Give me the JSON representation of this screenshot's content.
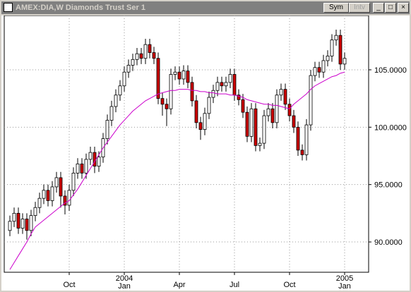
{
  "window": {
    "title": "AMEX:DIA,W Diamonds Trust Ser 1",
    "buttons": [
      "Sym",
      "Intv"
    ]
  },
  "chart_data": {
    "type": "candlestick",
    "categories": [
      null,
      null,
      null,
      null,
      null,
      null,
      null,
      null,
      null,
      null,
      null,
      null,
      null,
      null,
      "Oct",
      null,
      null,
      null,
      null,
      null,
      null,
      null,
      null,
      null,
      null,
      null,
      null,
      [
        "2004",
        "Jan"
      ],
      null,
      null,
      null,
      null,
      null,
      null,
      null,
      null,
      null,
      null,
      null,
      null,
      "Apr",
      null,
      null,
      null,
      null,
      null,
      null,
      null,
      null,
      null,
      null,
      null,
      null,
      "Jul",
      null,
      null,
      null,
      null,
      null,
      null,
      null,
      null,
      null,
      null,
      null,
      null,
      "Oct",
      null,
      null,
      null,
      null,
      null,
      null,
      null,
      null,
      null,
      null,
      null,
      null,
      [
        "2005",
        "Jan"
      ]
    ],
    "open": [
      91.0,
      91.8,
      92.5,
      91.2,
      92.0,
      91.0,
      92.3,
      93.0,
      93.8,
      94.5,
      93.6,
      94.8,
      95.6,
      94.0,
      93.2,
      94.5,
      96.0,
      96.8,
      96.0,
      97.2,
      97.8,
      96.6,
      97.4,
      99.0,
      100.6,
      101.8,
      102.8,
      103.6,
      104.8,
      105.4,
      105.9,
      106.4,
      106.0,
      107.2,
      106.5,
      106.0,
      102.5,
      102.0,
      101.6,
      104.6,
      104.8,
      104.2,
      104.9,
      103.9,
      102.3,
      100.4,
      99.8,
      101.2,
      102.6,
      103.2,
      103.9,
      103.6,
      103.9,
      104.6,
      102.8,
      102.4,
      101.3,
      99.2,
      101.6,
      98.4,
      98.6,
      101.0,
      101.6,
      100.4,
      102.8,
      103.3,
      102.0,
      101.0,
      100.0,
      98.0,
      97.6,
      100.2,
      104.5,
      105.2,
      104.8,
      105.8,
      106.2,
      107.6,
      108.0,
      105.5
    ],
    "high": [
      92.3,
      93.0,
      93.0,
      92.5,
      92.5,
      92.8,
      93.5,
      94.3,
      95.0,
      95.0,
      95.3,
      96.1,
      96.1,
      94.5,
      95.0,
      96.5,
      97.3,
      97.3,
      97.7,
      98.3,
      98.3,
      97.9,
      99.5,
      101.1,
      102.3,
      103.3,
      104.1,
      105.3,
      105.9,
      106.4,
      106.9,
      106.9,
      107.7,
      107.7,
      107.0,
      106.5,
      103.0,
      102.5,
      105.1,
      105.3,
      105.3,
      105.4,
      105.4,
      104.4,
      102.8,
      100.9,
      101.7,
      103.1,
      103.7,
      104.4,
      104.4,
      104.4,
      105.1,
      105.1,
      103.3,
      102.9,
      101.8,
      102.1,
      102.1,
      99.1,
      101.5,
      102.1,
      102.1,
      103.3,
      103.8,
      103.8,
      102.5,
      101.5,
      100.5,
      98.5,
      100.7,
      105.0,
      105.7,
      105.7,
      106.3,
      106.7,
      108.1,
      108.5,
      108.5,
      106.5
    ],
    "low": [
      90.5,
      91.3,
      90.7,
      90.7,
      90.2,
      90.5,
      91.8,
      92.5,
      93.3,
      93.1,
      93.1,
      94.3,
      93.0,
      92.4,
      92.7,
      94.0,
      95.5,
      95.5,
      95.5,
      96.7,
      96.0,
      96.1,
      96.9,
      98.5,
      100.1,
      101.3,
      102.3,
      103.1,
      104.3,
      104.9,
      105.4,
      105.5,
      105.5,
      106.0,
      105.5,
      102.0,
      101.0,
      100.1,
      101.1,
      104.1,
      103.7,
      103.7,
      103.4,
      101.8,
      99.9,
      98.9,
      99.3,
      100.7,
      102.1,
      102.7,
      103.1,
      103.1,
      103.4,
      102.3,
      101.9,
      100.8,
      98.7,
      98.7,
      97.9,
      97.9,
      98.1,
      100.5,
      99.9,
      99.9,
      102.3,
      101.5,
      100.5,
      99.5,
      97.5,
      97.1,
      97.1,
      99.7,
      104.0,
      104.3,
      104.3,
      105.3,
      105.7,
      107.1,
      105.0,
      105.0
    ],
    "close": [
      91.8,
      92.5,
      91.2,
      92.0,
      91.0,
      92.3,
      93.0,
      93.8,
      94.5,
      93.6,
      94.8,
      95.6,
      94.0,
      93.2,
      94.5,
      96.0,
      96.8,
      96.0,
      97.2,
      97.8,
      96.6,
      97.4,
      99.0,
      100.6,
      101.8,
      102.8,
      103.6,
      104.8,
      105.4,
      105.9,
      106.4,
      106.0,
      107.2,
      106.5,
      106.0,
      102.5,
      102.0,
      101.6,
      104.6,
      104.8,
      104.2,
      104.9,
      103.9,
      102.3,
      100.4,
      99.8,
      101.2,
      102.6,
      103.2,
      103.9,
      103.6,
      103.9,
      104.6,
      102.8,
      102.4,
      101.3,
      99.2,
      101.6,
      98.4,
      98.6,
      101.0,
      101.6,
      100.4,
      102.8,
      103.3,
      102.0,
      101.0,
      100.0,
      98.0,
      97.6,
      100.2,
      104.5,
      105.2,
      104.8,
      105.8,
      106.2,
      107.6,
      108.0,
      105.5,
      106.0
    ],
    "up_color": "#ffffff",
    "down_color": "#cc0000",
    "moving_average": {
      "color": "#cc00cc",
      "values": [
        87.6,
        88.2,
        88.8,
        89.4,
        90.0,
        90.7,
        91.3,
        91.6,
        91.9,
        92.2,
        92.5,
        92.8,
        93.1,
        93.4,
        93.6,
        94.1,
        94.6,
        95.2,
        95.8,
        96.4,
        97.0,
        97.6,
        98.2,
        98.7,
        99.2,
        99.7,
        100.2,
        100.6,
        101.0,
        101.4,
        101.7,
        102.0,
        102.3,
        102.5,
        102.7,
        102.9,
        103.0,
        103.1,
        103.2,
        103.2,
        103.3,
        103.3,
        103.3,
        103.2,
        103.2,
        103.1,
        103.1,
        103.0,
        103.0,
        102.9,
        102.9,
        102.9,
        102.8,
        102.8,
        102.7,
        102.6,
        102.4,
        102.3,
        102.2,
        102.1,
        102.0,
        102.0,
        101.9,
        101.9,
        101.8,
        101.7,
        101.6,
        102.0,
        102.3,
        102.6,
        102.9,
        103.3,
        103.6,
        103.8,
        104.0,
        104.2,
        104.4,
        104.5,
        104.7,
        104.8
      ]
    },
    "ylim": [
      87.36,
      109.73
    ],
    "yticks": [
      {
        "value": 90,
        "label": "90.0000"
      },
      {
        "value": 95,
        "label": "95.0000"
      },
      {
        "value": 100,
        "label": "100.0000"
      },
      {
        "value": 105,
        "label": "105.0000"
      }
    ],
    "grid": true
  }
}
